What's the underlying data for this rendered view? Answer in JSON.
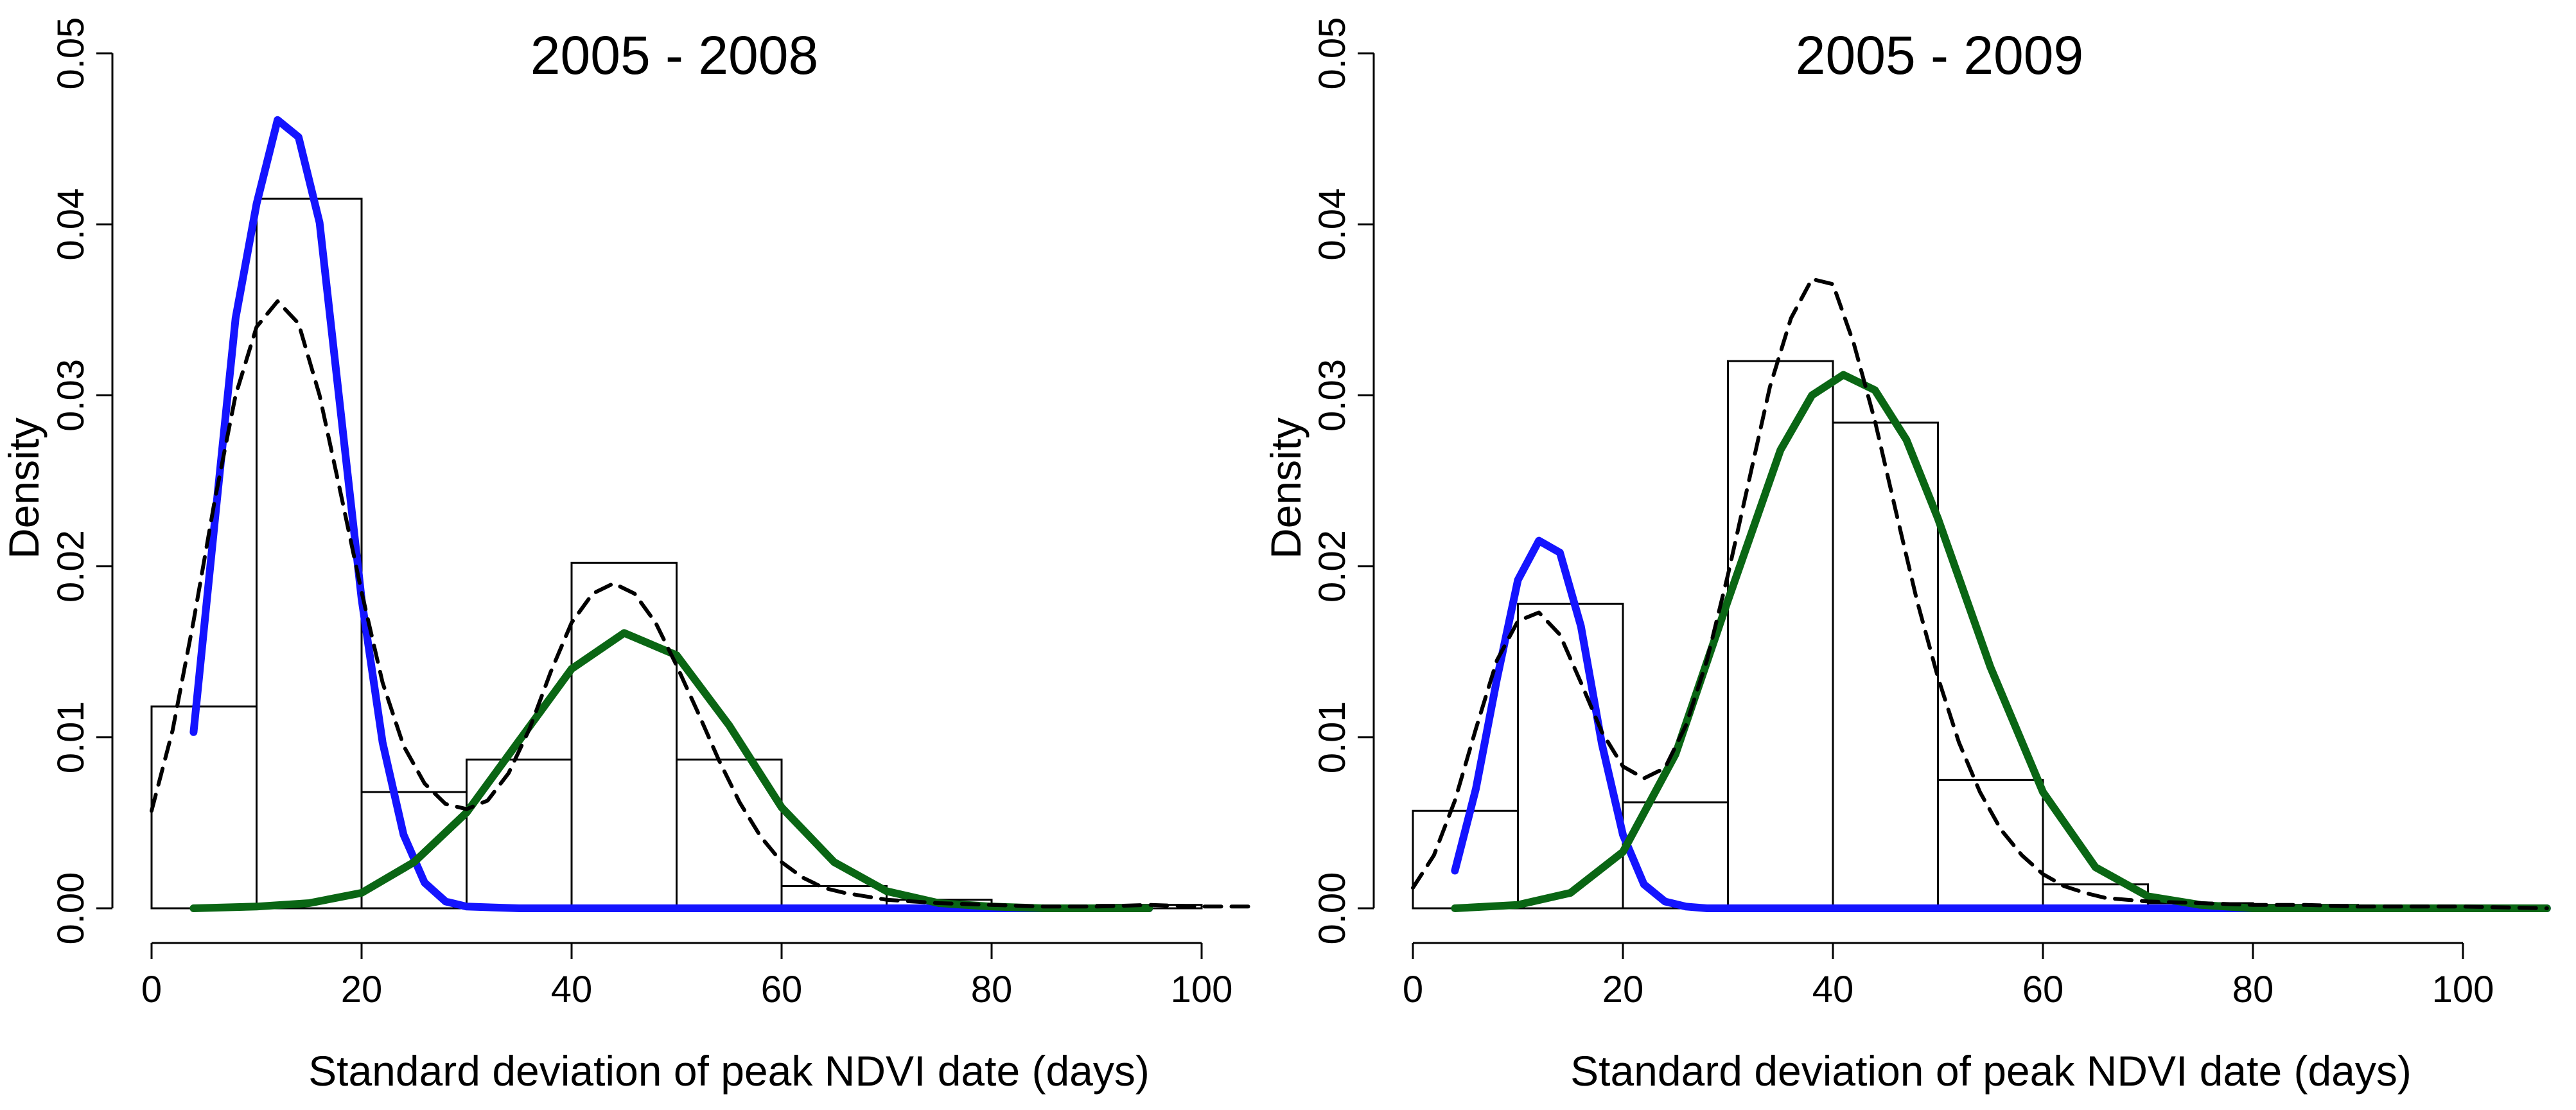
{
  "chart_data": [
    {
      "type": "histogram",
      "title": "2005 - 2008",
      "xlabel": "Standard deviation of peak NDVI date (days)",
      "ylabel": "Density",
      "xlim": [
        0,
        105
      ],
      "ylim": [
        0,
        0.05
      ],
      "xticks": [
        0,
        20,
        40,
        60,
        80,
        100
      ],
      "yticks": [
        0.0,
        0.01,
        0.02,
        0.03,
        0.04,
        0.05
      ],
      "xtick_labels": [
        "0",
        "20",
        "40",
        "60",
        "80",
        "100"
      ],
      "ytick_labels": [
        "0.00",
        "0.01",
        "0.02",
        "0.03",
        "0.04",
        "0.05"
      ],
      "grid": false,
      "bins": [
        {
          "x0": 0,
          "x1": 10,
          "density": 0.0118
        },
        {
          "x0": 10,
          "x1": 20,
          "density": 0.0415
        },
        {
          "x0": 20,
          "x1": 30,
          "density": 0.0068
        },
        {
          "x0": 30,
          "x1": 40,
          "density": 0.0087
        },
        {
          "x0": 40,
          "x1": 50,
          "density": 0.0202
        },
        {
          "x0": 50,
          "x1": 60,
          "density": 0.0087
        },
        {
          "x0": 60,
          "x1": 70,
          "density": 0.0013
        },
        {
          "x0": 70,
          "x1": 80,
          "density": 0.0005
        },
        {
          "x0": 80,
          "x1": 90,
          "density": 0.0001
        },
        {
          "x0": 90,
          "x1": 100,
          "density": 0.0002
        }
      ],
      "series": [
        {
          "style": "solid",
          "color": "#1414ff",
          "x": [
            4,
            6,
            8,
            10,
            12,
            14,
            16,
            18,
            20,
            22,
            24,
            26,
            28,
            30,
            35,
            40,
            50,
            60,
            70,
            80,
            95
          ],
          "y": [
            0.0103,
            0.0225,
            0.0345,
            0.0412,
            0.0461,
            0.0451,
            0.0401,
            0.0291,
            0.0181,
            0.0097,
            0.0043,
            0.0015,
            0.0004,
            0.0001,
            0,
            0,
            0,
            0,
            0,
            0,
            0
          ]
        },
        {
          "style": "solid",
          "color": "#0a6614",
          "x": [
            4,
            10,
            15,
            20,
            25,
            30,
            35,
            40,
            45,
            50,
            55,
            60,
            65,
            70,
            75,
            80,
            85,
            90,
            95
          ],
          "y": [
            0,
            0.0001,
            0.0003,
            0.0009,
            0.0027,
            0.0056,
            0.0098,
            0.014,
            0.0161,
            0.0148,
            0.0107,
            0.0059,
            0.0027,
            0.001,
            0.0003,
            0.0001,
            0,
            0,
            0
          ]
        },
        {
          "style": "dashed",
          "color": "#000000",
          "x": [
            0,
            2,
            4,
            6,
            8,
            10,
            12,
            14,
            16,
            18,
            20,
            22,
            24,
            26,
            28,
            30,
            32,
            34,
            36,
            38,
            40,
            42,
            44,
            46,
            48,
            50,
            52,
            54,
            56,
            58,
            60,
            62,
            64,
            66,
            68,
            70,
            75,
            80,
            85,
            90,
            95,
            100,
            105
          ],
          "y": [
            0.0057,
            0.0104,
            0.0168,
            0.0238,
            0.03,
            0.034,
            0.0355,
            0.0342,
            0.03,
            0.0243,
            0.0185,
            0.0132,
            0.0095,
            0.0073,
            0.0061,
            0.0058,
            0.0063,
            0.0079,
            0.0105,
            0.0138,
            0.0167,
            0.0184,
            0.019,
            0.0184,
            0.0167,
            0.0142,
            0.0115,
            0.0087,
            0.0062,
            0.0042,
            0.0027,
            0.0018,
            0.0012,
            0.0009,
            0.0007,
            0.0005,
            0.0003,
            0.0002,
            0.0001,
            0.0001,
            0.0002,
            0.0001,
            0.0001
          ]
        }
      ]
    },
    {
      "type": "histogram",
      "title": "2005 - 2009",
      "xlabel": "Standard deviation of peak NDVI date (days)",
      "ylabel": "Density",
      "xlim": [
        0,
        108
      ],
      "ylim": [
        0,
        0.05
      ],
      "xticks": [
        0,
        20,
        40,
        60,
        80,
        100
      ],
      "yticks": [
        0.0,
        0.01,
        0.02,
        0.03,
        0.04,
        0.05
      ],
      "xtick_labels": [
        "0",
        "20",
        "40",
        "60",
        "80",
        "100"
      ],
      "ytick_labels": [
        "0.00",
        "0.01",
        "0.02",
        "0.03",
        "0.04",
        "0.05"
      ],
      "grid": false,
      "bins": [
        {
          "x0": 0,
          "x1": 10,
          "density": 0.0057
        },
        {
          "x0": 10,
          "x1": 20,
          "density": 0.0178
        },
        {
          "x0": 20,
          "x1": 30,
          "density": 0.0062
        },
        {
          "x0": 30,
          "x1": 40,
          "density": 0.032
        },
        {
          "x0": 40,
          "x1": 50,
          "density": 0.0284
        },
        {
          "x0": 50,
          "x1": 60,
          "density": 0.0075
        },
        {
          "x0": 60,
          "x1": 70,
          "density": 0.0014
        },
        {
          "x0": 70,
          "x1": 80,
          "density": 0.0003
        },
        {
          "x0": 80,
          "x1": 90,
          "density": 0.0002
        },
        {
          "x0": 90,
          "x1": 100,
          "density": 0.0001
        }
      ],
      "series": [
        {
          "style": "solid",
          "color": "#1414ff",
          "x": [
            4,
            6,
            8,
            10,
            12,
            14,
            16,
            18,
            20,
            22,
            24,
            26,
            28,
            30,
            40,
            60,
            80,
            100,
            108
          ],
          "y": [
            0.0022,
            0.007,
            0.0134,
            0.0192,
            0.0215,
            0.0208,
            0.0165,
            0.0096,
            0.0043,
            0.0014,
            0.0004,
            0.0001,
            0,
            0,
            0,
            0,
            0,
            0,
            0
          ]
        },
        {
          "style": "solid",
          "color": "#0a6614",
          "x": [
            4,
            10,
            15,
            20,
            25,
            30,
            35,
            38,
            41,
            44,
            47,
            50,
            55,
            60,
            65,
            70,
            75,
            80,
            90,
            100,
            108
          ],
          "y": [
            0,
            0.0002,
            0.0009,
            0.0033,
            0.009,
            0.018,
            0.0268,
            0.03,
            0.0312,
            0.0303,
            0.0274,
            0.0228,
            0.0141,
            0.0068,
            0.0024,
            0.0007,
            0.0002,
            0,
            0,
            0,
            0
          ]
        },
        {
          "style": "dashed",
          "color": "#000000",
          "x": [
            0,
            2,
            4,
            6,
            8,
            10,
            12,
            14,
            16,
            18,
            20,
            22,
            24,
            26,
            28,
            30,
            32,
            34,
            36,
            38,
            40,
            42,
            44,
            46,
            48,
            50,
            52,
            54,
            56,
            58,
            60,
            62,
            64,
            66,
            68,
            70,
            75,
            80,
            85,
            90,
            95,
            100,
            108
          ],
          "y": [
            0.0012,
            0.0031,
            0.0063,
            0.0105,
            0.0145,
            0.0168,
            0.0173,
            0.016,
            0.0132,
            0.0103,
            0.0083,
            0.0076,
            0.0082,
            0.0107,
            0.0145,
            0.0195,
            0.025,
            0.0305,
            0.0345,
            0.0368,
            0.0365,
            0.033,
            0.0285,
            0.0232,
            0.018,
            0.0135,
            0.0097,
            0.0068,
            0.0046,
            0.0031,
            0.002,
            0.0013,
            0.0009,
            0.0006,
            0.0005,
            0.0004,
            0.0003,
            0.0002,
            0.0002,
            0.0001,
            0.0001,
            0.0001,
            0
          ]
        }
      ]
    }
  ]
}
